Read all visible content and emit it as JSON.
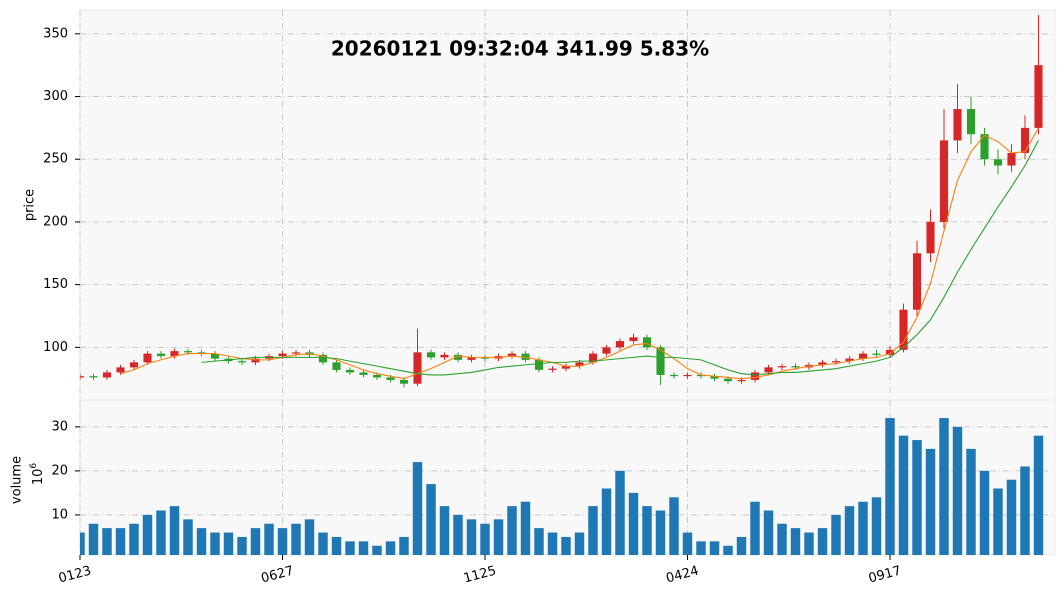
{
  "chart_data": {
    "type": "candlestick",
    "title": "20260121 09:32:04   341.99 5.83%",
    "ylabel": "price",
    "categories": [
      "0123",
      null,
      null,
      null,
      null,
      null,
      null,
      null,
      null,
      null,
      null,
      null,
      null,
      null,
      null,
      "0627",
      null,
      null,
      null,
      null,
      null,
      null,
      null,
      null,
      null,
      null,
      null,
      null,
      null,
      null,
      "1125",
      null,
      null,
      null,
      null,
      null,
      null,
      null,
      null,
      null,
      null,
      null,
      null,
      null,
      null,
      "0424",
      null,
      null,
      null,
      null,
      null,
      null,
      null,
      null,
      null,
      null,
      null,
      null,
      null,
      null,
      "0917",
      null,
      null,
      null,
      null,
      null,
      null,
      null,
      null,
      null,
      null,
      null
    ],
    "open": [
      76,
      77,
      76,
      80,
      84,
      88,
      95,
      93,
      97,
      96,
      95,
      91,
      89,
      88,
      91,
      93,
      95,
      96,
      94,
      88,
      82,
      80,
      78,
      76,
      74,
      71,
      96,
      92,
      94,
      90,
      92,
      91,
      93,
      95,
      90,
      82,
      83,
      85,
      88,
      95,
      100,
      105,
      108,
      100,
      78,
      77,
      78,
      77,
      75,
      73,
      74,
      80,
      84,
      85,
      84,
      86,
      88,
      89,
      91,
      95,
      94,
      98,
      130,
      175,
      200,
      265,
      290,
      270,
      250,
      245,
      255,
      275
    ],
    "high": [
      79,
      79,
      82,
      86,
      90,
      97,
      97,
      99,
      99,
      98,
      97,
      93,
      91,
      93,
      95,
      97,
      98,
      98,
      96,
      90,
      84,
      82,
      80,
      78,
      76,
      115,
      98,
      96,
      96,
      94,
      94,
      95,
      97,
      97,
      92,
      85,
      87,
      90,
      97,
      102,
      107,
      111,
      110,
      102,
      80,
      80,
      80,
      79,
      77,
      76,
      82,
      86,
      87,
      87,
      88,
      90,
      91,
      93,
      97,
      98,
      101,
      135,
      185,
      210,
      290,
      310,
      300,
      275,
      258,
      262,
      285,
      365
    ],
    "low": [
      74,
      74,
      74,
      78,
      82,
      86,
      91,
      91,
      94,
      93,
      89,
      87,
      86,
      86,
      89,
      91,
      93,
      92,
      86,
      80,
      78,
      76,
      74,
      72,
      68,
      69,
      90,
      90,
      88,
      88,
      89,
      89,
      91,
      88,
      80,
      80,
      81,
      83,
      86,
      93,
      98,
      103,
      98,
      70,
      75,
      75,
      75,
      73,
      71,
      71,
      72,
      78,
      82,
      82,
      82,
      84,
      86,
      87,
      89,
      92,
      92,
      96,
      125,
      168,
      195,
      255,
      262,
      245,
      238,
      240,
      250,
      270
    ],
    "close": [
      77,
      76,
      80,
      84,
      88,
      95,
      93,
      97,
      96,
      95,
      91,
      89,
      88,
      91,
      93,
      95,
      96,
      94,
      88,
      82,
      80,
      78,
      76,
      74,
      71,
      96,
      92,
      94,
      90,
      92,
      91,
      93,
      95,
      90,
      82,
      83,
      85,
      88,
      95,
      100,
      105,
      108,
      100,
      78,
      77,
      78,
      77,
      75,
      73,
      74,
      80,
      84,
      85,
      84,
      86,
      88,
      89,
      91,
      95,
      94,
      98,
      130,
      175,
      200,
      265,
      290,
      270,
      250,
      245,
      255,
      275,
      325
    ],
    "up_color": "#d62728",
    "down_color": "#2ca02c",
    "ylim": [
      58,
      369
    ],
    "yticks": [
      100,
      150,
      200,
      250,
      300,
      350
    ],
    "grid": true,
    "moving_averages": [
      {
        "color": "#ff7f0e",
        "values": [
          null,
          null,
          null,
          79,
          82,
          87,
          90,
          93,
          95,
          95,
          95,
          93,
          91,
          90,
          90,
          92,
          94,
          95,
          93,
          90,
          86,
          82,
          79,
          77,
          75,
          79,
          83,
          88,
          93,
          92,
          92,
          92,
          93,
          92,
          90,
          88,
          85,
          85,
          88,
          92,
          97,
          102,
          103,
          98,
          91,
          83,
          78,
          77,
          76,
          75,
          76,
          78,
          81,
          83,
          85,
          86,
          87,
          89,
          91,
          92,
          95,
          104,
          124,
          151,
          193,
          233,
          256,
          269,
          264,
          255,
          256,
          275
        ]
      },
      {
        "color": "#2ca02c",
        "values": [
          null,
          null,
          null,
          null,
          null,
          null,
          null,
          null,
          null,
          88,
          89,
          90,
          91,
          92,
          92,
          92,
          92,
          92,
          92,
          91,
          89,
          87,
          85,
          83,
          81,
          79,
          78,
          78,
          79,
          80,
          82,
          84,
          85,
          86,
          87,
          88,
          88,
          89,
          89,
          90,
          91,
          92,
          93,
          92,
          92,
          91,
          90,
          86,
          82,
          79,
          78,
          79,
          80,
          80,
          81,
          82,
          83,
          85,
          87,
          89,
          92,
          100,
          110,
          122,
          140,
          160,
          178,
          195,
          212,
          228,
          245,
          265
        ]
      }
    ],
    "volume": {
      "ylabel": "volume",
      "multiplier_base": "10",
      "multiplier_exponent": "6",
      "color": "#1f77b4",
      "values": [
        6,
        8,
        7,
        7,
        8,
        10,
        11,
        12,
        9,
        7,
        6,
        6,
        5,
        7,
        8,
        7,
        8,
        9,
        6,
        5,
        4,
        4,
        3,
        4,
        5,
        22,
        17,
        12,
        10,
        9,
        8,
        9,
        12,
        13,
        7,
        6,
        5,
        6,
        12,
        16,
        20,
        15,
        12,
        11,
        14,
        6,
        4,
        4,
        3,
        5,
        13,
        11,
        8,
        7,
        6,
        7,
        10,
        12,
        13,
        14,
        32,
        28,
        27,
        25,
        32,
        30,
        25,
        20,
        16,
        18,
        21,
        28
      ],
      "ylim": [
        0.9,
        36.1
      ],
      "yticks": [
        10,
        20,
        30
      ]
    }
  }
}
